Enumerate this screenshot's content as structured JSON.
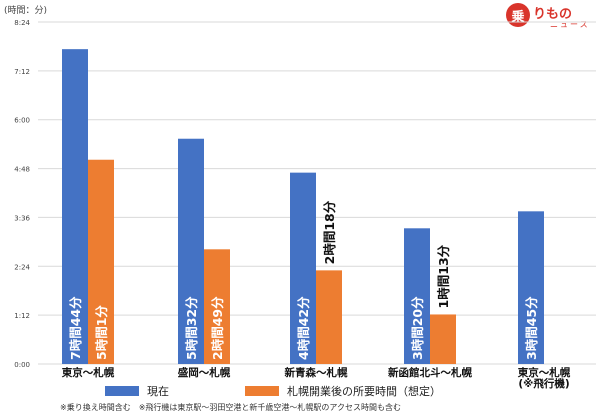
{
  "unit_label": "(時間：分)",
  "logo": {
    "mark": "乗",
    "text": "りもの",
    "sub": "ニュース"
  },
  "footnote": "※乗り換え時間含む　※飛行機は東京駅～羽田空港と新千歳空港～札幌駅のアクセス時間も含む",
  "colors": {
    "current": "#4472c4",
    "planned": "#ed7d31",
    "grid": "#d9d9d9"
  },
  "chart_data": {
    "type": "bar",
    "categories": [
      "東京～札幌",
      "盛岡～札幌",
      "新青森～札幌",
      "新函館北斗～札幌",
      "東京～札幌\n(※飛行機)"
    ],
    "series": [
      {
        "name": "現在",
        "values": [
          7.733,
          5.533,
          4.7,
          3.333,
          3.75
        ],
        "labels": [
          "7時間44分",
          "5時間32分",
          "4時間42分",
          "3時間20分",
          "3時間45分"
        ]
      },
      {
        "name": "札幌開業後の所要時間（想定）",
        "values": [
          5.017,
          2.817,
          2.3,
          1.217,
          null
        ],
        "labels": [
          "5時間1分",
          "2時間49分",
          "2時間18分",
          "1時間13分",
          ""
        ]
      }
    ],
    "yticks": [
      "0:00",
      "1:12",
      "2:24",
      "3:36",
      "4:48",
      "6:00",
      "7:12",
      "8:24"
    ],
    "ylim": [
      0,
      8.4
    ],
    "grid": true,
    "legend": "bottom"
  }
}
